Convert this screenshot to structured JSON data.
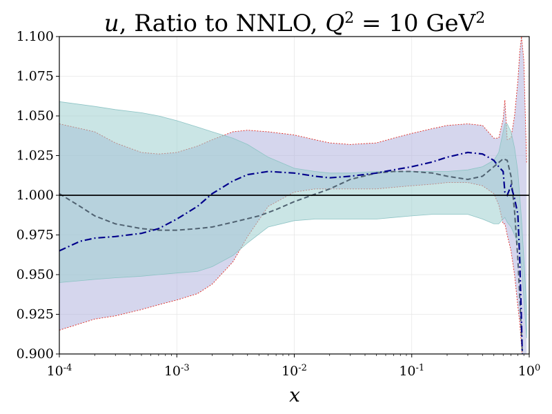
{
  "chart_data": {
    "type": "area",
    "title": {
      "var": "u",
      "text": ", Ratio to NNLO, ",
      "q": "Q",
      "q_exp": "2",
      "eq": " = 10 GeV",
      "unit_exp": "2"
    },
    "xlabel": "x",
    "ylabel": "",
    "xscale": "log",
    "xlim": [
      0.0001,
      1
    ],
    "ylim": [
      0.9,
      1.1
    ],
    "yticks": [
      "0.900",
      "0.925",
      "0.950",
      "0.975",
      "1.000",
      "1.025",
      "1.050",
      "1.075",
      "1.100"
    ],
    "xticks": [
      {
        "base": "10",
        "exp": "-4"
      },
      {
        "base": "10",
        "exp": "-3"
      },
      {
        "base": "10",
        "exp": "-2"
      },
      {
        "base": "10",
        "exp": "-1"
      },
      {
        "base": "10",
        "exp": "0"
      }
    ],
    "grid": true,
    "reference_line": 1.0,
    "colors": {
      "band_teal": "#9fd0cf",
      "band_purple": "#b3b4de",
      "band_edge_red": "#e0261d",
      "central_blue": "#00008b",
      "central_gray": "#4f6170",
      "reference": "#000000"
    },
    "series": [
      {
        "style": "band-purple",
        "x": [
          0.0001,
          0.0002,
          0.0003,
          0.0005,
          0.0007,
          0.001,
          0.0015,
          0.002,
          0.003,
          0.004,
          0.006,
          0.01,
          0.015,
          0.02,
          0.03,
          0.05,
          0.07,
          0.1,
          0.15,
          0.2,
          0.3,
          0.4,
          0.5,
          0.55,
          0.6,
          0.62,
          0.65,
          0.7,
          0.75,
          0.8,
          0.83,
          0.86,
          0.9,
          0.95
        ],
        "upper": [
          1.045,
          1.04,
          1.033,
          1.027,
          1.026,
          1.027,
          1.031,
          1.035,
          1.04,
          1.041,
          1.04,
          1.038,
          1.035,
          1.033,
          1.032,
          1.033,
          1.036,
          1.039,
          1.042,
          1.044,
          1.045,
          1.044,
          1.036,
          1.036,
          1.048,
          1.06,
          1.035,
          1.036,
          1.05,
          1.072,
          1.09,
          1.1,
          1.085,
          1.02
        ],
        "lower": [
          0.915,
          0.922,
          0.924,
          0.928,
          0.931,
          0.934,
          0.938,
          0.944,
          0.958,
          0.974,
          0.993,
          1.002,
          1.004,
          1.004,
          1.004,
          1.004,
          1.005,
          1.006,
          1.007,
          1.008,
          1.008,
          1.006,
          1.001,
          0.994,
          0.982,
          0.982,
          0.975,
          0.965,
          0.95,
          0.93,
          0.92,
          0.905,
          0.88,
          0.86
        ]
      },
      {
        "style": "band-teal",
        "x": [
          0.0001,
          0.0002,
          0.0003,
          0.0005,
          0.0007,
          0.001,
          0.0015,
          0.002,
          0.003,
          0.004,
          0.006,
          0.01,
          0.015,
          0.02,
          0.03,
          0.05,
          0.07,
          0.1,
          0.15,
          0.2,
          0.3,
          0.4,
          0.5,
          0.55,
          0.6,
          0.62,
          0.65,
          0.7,
          0.75,
          0.8,
          0.83,
          0.86,
          0.9,
          0.95
        ],
        "upper": [
          1.059,
          1.056,
          1.054,
          1.052,
          1.05,
          1.047,
          1.043,
          1.04,
          1.036,
          1.032,
          1.024,
          1.017,
          1.015,
          1.014,
          1.014,
          1.015,
          1.015,
          1.015,
          1.015,
          1.015,
          1.016,
          1.018,
          1.022,
          1.027,
          1.04,
          1.045,
          1.045,
          1.04,
          1.03,
          1.015,
          1.0,
          0.985,
          0.96,
          0.93
        ],
        "lower": [
          0.945,
          0.947,
          0.948,
          0.949,
          0.95,
          0.951,
          0.952,
          0.955,
          0.962,
          0.97,
          0.98,
          0.984,
          0.985,
          0.985,
          0.985,
          0.985,
          0.986,
          0.987,
          0.988,
          0.988,
          0.988,
          0.985,
          0.982,
          0.982,
          0.985,
          0.986,
          0.983,
          0.98,
          0.975,
          0.97,
          0.965,
          0.955,
          0.935,
          0.91
        ]
      },
      {
        "style": "line-gray-dashed",
        "x": [
          0.0001,
          0.00015,
          0.0002,
          0.0003,
          0.0005,
          0.0007,
          0.001,
          0.0015,
          0.002,
          0.003,
          0.005,
          0.007,
          0.01,
          0.02,
          0.03,
          0.05,
          0.07,
          0.1,
          0.15,
          0.2,
          0.3,
          0.4,
          0.5,
          0.6,
          0.65,
          0.7,
          0.75,
          0.8,
          0.85,
          0.9
        ],
        "y": [
          1.001,
          0.993,
          0.987,
          0.982,
          0.979,
          0.978,
          0.978,
          0.979,
          0.98,
          0.983,
          0.987,
          0.991,
          0.996,
          1.004,
          1.01,
          1.014,
          1.015,
          1.015,
          1.014,
          1.012,
          1.01,
          1.012,
          1.018,
          1.023,
          1.022,
          1.012,
          0.99,
          0.96,
          0.92,
          0.88
        ]
      },
      {
        "style": "line-blue-dashdot",
        "x": [
          0.0001,
          0.00015,
          0.0002,
          0.0003,
          0.0005,
          0.0007,
          0.001,
          0.0015,
          0.002,
          0.003,
          0.004,
          0.006,
          0.01,
          0.015,
          0.02,
          0.03,
          0.05,
          0.07,
          0.1,
          0.15,
          0.2,
          0.3,
          0.4,
          0.5,
          0.55,
          0.6,
          0.62,
          0.65,
          0.7,
          0.75,
          0.8,
          0.83,
          0.86,
          0.9
        ],
        "y": [
          0.965,
          0.971,
          0.973,
          0.974,
          0.976,
          0.979,
          0.985,
          0.993,
          1.001,
          1.009,
          1.013,
          1.015,
          1.014,
          1.012,
          1.011,
          1.012,
          1.014,
          1.016,
          1.018,
          1.021,
          1.024,
          1.027,
          1.026,
          1.022,
          1.018,
          1.015,
          1.002,
          1.0,
          1.006,
          0.998,
          0.988,
          0.96,
          0.92,
          0.86
        ]
      }
    ]
  }
}
